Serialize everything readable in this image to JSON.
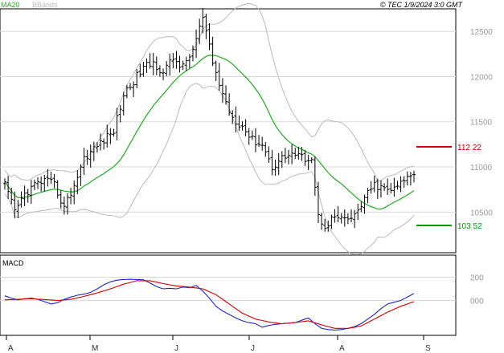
{
  "header": {
    "legend_ma": "MA20",
    "legend_bbands": "BBands",
    "copyright": "© TEC 1/9/2024 3:0 GMT"
  },
  "macd_panel": {
    "label": "MACD"
  },
  "colors": {
    "ohlc": "#000000",
    "ma20": "#22aa22",
    "bbands": "#bbbbbb",
    "resistance": "#cc0000",
    "support": "#009900",
    "macd": "#2222cc",
    "signal": "#cc0000",
    "grid": "#d8d8d8"
  },
  "chart_data": [
    {
      "type": "ohlc",
      "title": "",
      "x_ticks": [
        "A",
        "M",
        "J",
        "J",
        "A",
        "S"
      ],
      "y_ticks": [
        "10500",
        "11000",
        "11500",
        "12000",
        "12500"
      ],
      "y_tick_values": [
        10500,
        11000,
        11500,
        12000,
        12500
      ],
      "ylim": [
        10050,
        12750
      ],
      "grid": true,
      "series": [
        {
          "name": "price",
          "close_path": [
            [
              0,
              10800
            ],
            [
              3,
              10500
            ],
            [
              6,
              10700
            ],
            [
              9,
              10800
            ],
            [
              12,
              10850
            ],
            [
              15,
              10800
            ],
            [
              18,
              10550
            ],
            [
              21,
              10800
            ],
            [
              24,
              11100
            ],
            [
              27,
              11200
            ],
            [
              30,
              11300
            ],
            [
              33,
              11400
            ],
            [
              36,
              11800
            ],
            [
              39,
              11950
            ],
            [
              42,
              12100
            ],
            [
              45,
              12150
            ],
            [
              48,
              12050
            ],
            [
              51,
              12200
            ],
            [
              54,
              12100
            ],
            [
              57,
              12300
            ],
            [
              60,
              12650
            ],
            [
              63,
              12150
            ],
            [
              66,
              11800
            ],
            [
              69,
              11550
            ],
            [
              72,
              11450
            ],
            [
              75,
              11300
            ],
            [
              78,
              11250
            ],
            [
              81,
              11000
            ],
            [
              84,
              11100
            ],
            [
              87,
              11150
            ],
            [
              90,
              11100
            ],
            [
              93,
              11100
            ],
            [
              95,
              10450
            ],
            [
              97,
              10350
            ],
            [
              100,
              10450
            ],
            [
              103,
              10400
            ],
            [
              106,
              10450
            ],
            [
              109,
              10650
            ],
            [
              112,
              10800
            ],
            [
              115,
              10750
            ],
            [
              118,
              10750
            ],
            [
              121,
              10850
            ],
            [
              124,
              10950
            ]
          ],
          "num_bars": 125
        },
        {
          "name": "MA20",
          "kind": "line",
          "color_key": "ma20"
        },
        {
          "name": "BBands",
          "kind": "band",
          "color_key": "bbands"
        }
      ],
      "levels": [
        {
          "label": "112 22",
          "value": 11222,
          "role": "resistance"
        },
        {
          "label": "103 52",
          "value": 10352,
          "role": "support"
        }
      ]
    },
    {
      "type": "line",
      "title": "MACD",
      "y_ticks": [
        "200",
        "000"
      ],
      "y_tick_values": [
        200,
        0
      ],
      "ylim": [
        -300,
        390
      ],
      "series": [
        {
          "name": "MACD",
          "color_key": "macd",
          "values": [
            [
              0,
              40
            ],
            [
              2,
              20
            ],
            [
              4,
              5
            ],
            [
              6,
              15
            ],
            [
              8,
              20
            ],
            [
              10,
              10
            ],
            [
              12,
              -10
            ],
            [
              14,
              -30
            ],
            [
              16,
              -20
            ],
            [
              18,
              10
            ],
            [
              20,
              30
            ],
            [
              22,
              45
            ],
            [
              24,
              55
            ],
            [
              26,
              70
            ],
            [
              28,
              100
            ],
            [
              30,
              135
            ],
            [
              32,
              160
            ],
            [
              34,
              175
            ],
            [
              36,
              180
            ],
            [
              38,
              182
            ],
            [
              40,
              180
            ],
            [
              42,
              178
            ],
            [
              44,
              150
            ],
            [
              46,
              120
            ],
            [
              48,
              100
            ],
            [
              50,
              105
            ],
            [
              52,
              100
            ],
            [
              54,
              115
            ],
            [
              56,
              110
            ],
            [
              58,
              130
            ],
            [
              60,
              80
            ],
            [
              62,
              20
            ],
            [
              64,
              -50
            ],
            [
              66,
              -90
            ],
            [
              68,
              -120
            ],
            [
              70,
              -150
            ],
            [
              72,
              -175
            ],
            [
              74,
              -190
            ],
            [
              76,
              -200
            ],
            [
              78,
              -230
            ],
            [
              80,
              -215
            ],
            [
              82,
              -205
            ],
            [
              84,
              -200
            ],
            [
              86,
              -195
            ],
            [
              88,
              -190
            ],
            [
              90,
              -170
            ],
            [
              92,
              -150
            ],
            [
              94,
              -200
            ],
            [
              96,
              -240
            ],
            [
              98,
              -250
            ],
            [
              100,
              -255
            ],
            [
              102,
              -250
            ],
            [
              104,
              -240
            ],
            [
              106,
              -225
            ],
            [
              108,
              -200
            ],
            [
              110,
              -160
            ],
            [
              112,
              -120
            ],
            [
              114,
              -70
            ],
            [
              116,
              -30
            ],
            [
              118,
              -15
            ],
            [
              120,
              0
            ],
            [
              122,
              30
            ],
            [
              124,
              60
            ]
          ]
        },
        {
          "name": "Signal",
          "color_key": "signal",
          "values": [
            [
              0,
              5
            ],
            [
              4,
              10
            ],
            [
              8,
              15
            ],
            [
              12,
              8
            ],
            [
              16,
              0
            ],
            [
              20,
              10
            ],
            [
              24,
              35
            ],
            [
              28,
              65
            ],
            [
              32,
              100
            ],
            [
              36,
              140
            ],
            [
              40,
              170
            ],
            [
              44,
              170
            ],
            [
              48,
              145
            ],
            [
              52,
              125
            ],
            [
              56,
              115
            ],
            [
              60,
              100
            ],
            [
              64,
              50
            ],
            [
              68,
              -30
            ],
            [
              72,
              -110
            ],
            [
              76,
              -160
            ],
            [
              80,
              -185
            ],
            [
              84,
              -200
            ],
            [
              88,
              -190
            ],
            [
              92,
              -175
            ],
            [
              96,
              -210
            ],
            [
              100,
              -240
            ],
            [
              104,
              -240
            ],
            [
              108,
              -220
            ],
            [
              112,
              -160
            ],
            [
              116,
              -100
            ],
            [
              120,
              -50
            ],
            [
              124,
              -10
            ]
          ]
        }
      ]
    }
  ]
}
